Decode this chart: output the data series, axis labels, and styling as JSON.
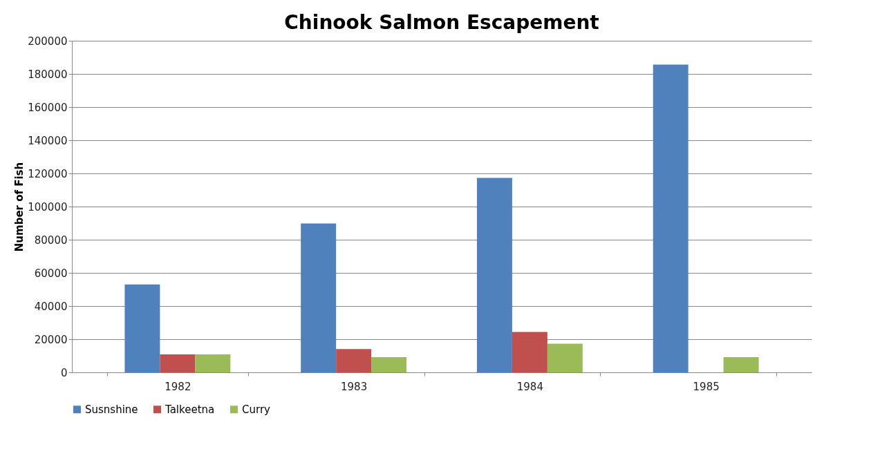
{
  "chart_data": {
    "type": "bar",
    "title": "Chinook Salmon Escapement",
    "ylabel": "Number of Fish",
    "categories": [
      "1982",
      "1983",
      "1984",
      "1985"
    ],
    "series": [
      {
        "name": "Susnshine",
        "color": "#4f81bd",
        "values": [
          53000,
          89800,
          117300,
          185600
        ]
      },
      {
        "name": "Talkeetna",
        "color": "#c0504d",
        "values": [
          10800,
          14100,
          24400,
          null
        ]
      },
      {
        "name": "Curry",
        "color": "#9bbb59",
        "values": [
          10800,
          9200,
          17300,
          9200
        ]
      }
    ],
    "ylim": [
      0,
      200000
    ],
    "yticks": [
      0,
      20000,
      40000,
      60000,
      80000,
      100000,
      120000,
      140000,
      160000,
      180000,
      200000
    ],
    "grid": "y",
    "legend": "bottom"
  }
}
